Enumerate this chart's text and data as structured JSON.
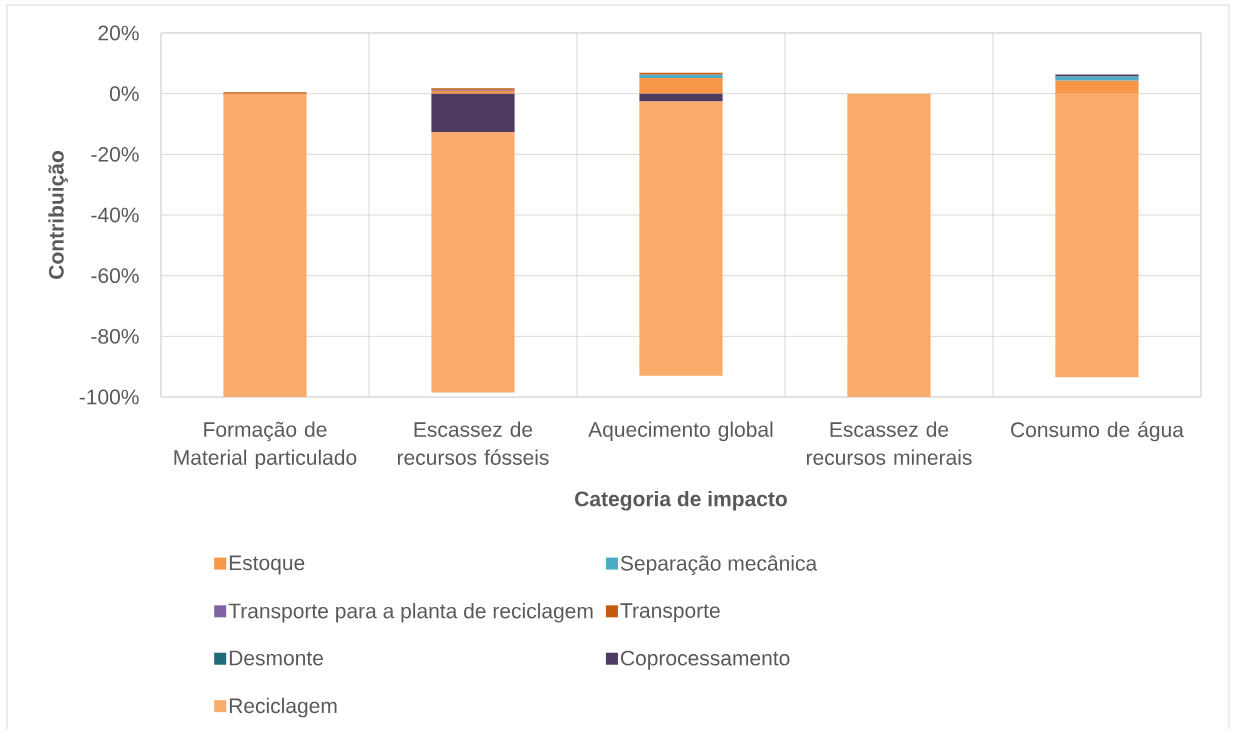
{
  "chart_data": {
    "type": "bar",
    "stacked": true,
    "xlabel": "Categoria de impacto",
    "ylabel": "Contribuição",
    "categories": [
      "Formação de Material particulado",
      "Escassez de recursos fósseis",
      "Aquecimento global",
      "Escassez de recursos minerais",
      "Consumo de água"
    ],
    "series": [
      {
        "name": "Estoque",
        "color": "#f79646",
        "values": [
          0,
          1,
          5.2,
          0,
          4.3
        ]
      },
      {
        "name": "Separação mecânica",
        "color": "#4bacc6",
        "values": [
          0,
          0,
          1.1,
          0,
          1.4
        ]
      },
      {
        "name": "Transporte para a planta de reciclagem",
        "color": "#8064a2",
        "values": [
          0,
          0.3,
          0,
          0,
          0
        ]
      },
      {
        "name": "Transporte",
        "color": "#c55a11",
        "values": [
          0.5,
          0.5,
          0.6,
          0,
          0
        ]
      },
      {
        "name": "Desmonte",
        "color": "#1f6b7a",
        "values": [
          0,
          0,
          0,
          0,
          0
        ]
      },
      {
        "name": "Coprocessamento",
        "color": "#4e3b62",
        "values": [
          0,
          -12.7,
          -2.6,
          0,
          0.6
        ]
      },
      {
        "name": "Reciclagem",
        "color": "#f8ab6b",
        "values": [
          -100,
          -85.8,
          -90.4,
          -100,
          -93.5
        ]
      }
    ],
    "ylim": [
      -100,
      20
    ],
    "yticks": [
      {
        "value": -100,
        "label": "-100%"
      },
      {
        "value": -80,
        "label": "-80%"
      },
      {
        "value": -60,
        "label": "-60%"
      },
      {
        "value": -40,
        "label": "-40%"
      },
      {
        "value": -20,
        "label": "-20%"
      },
      {
        "value": 0,
        "label": "0%"
      },
      {
        "value": 20,
        "label": "20%"
      }
    ],
    "grid": true,
    "legend": "bottom"
  }
}
